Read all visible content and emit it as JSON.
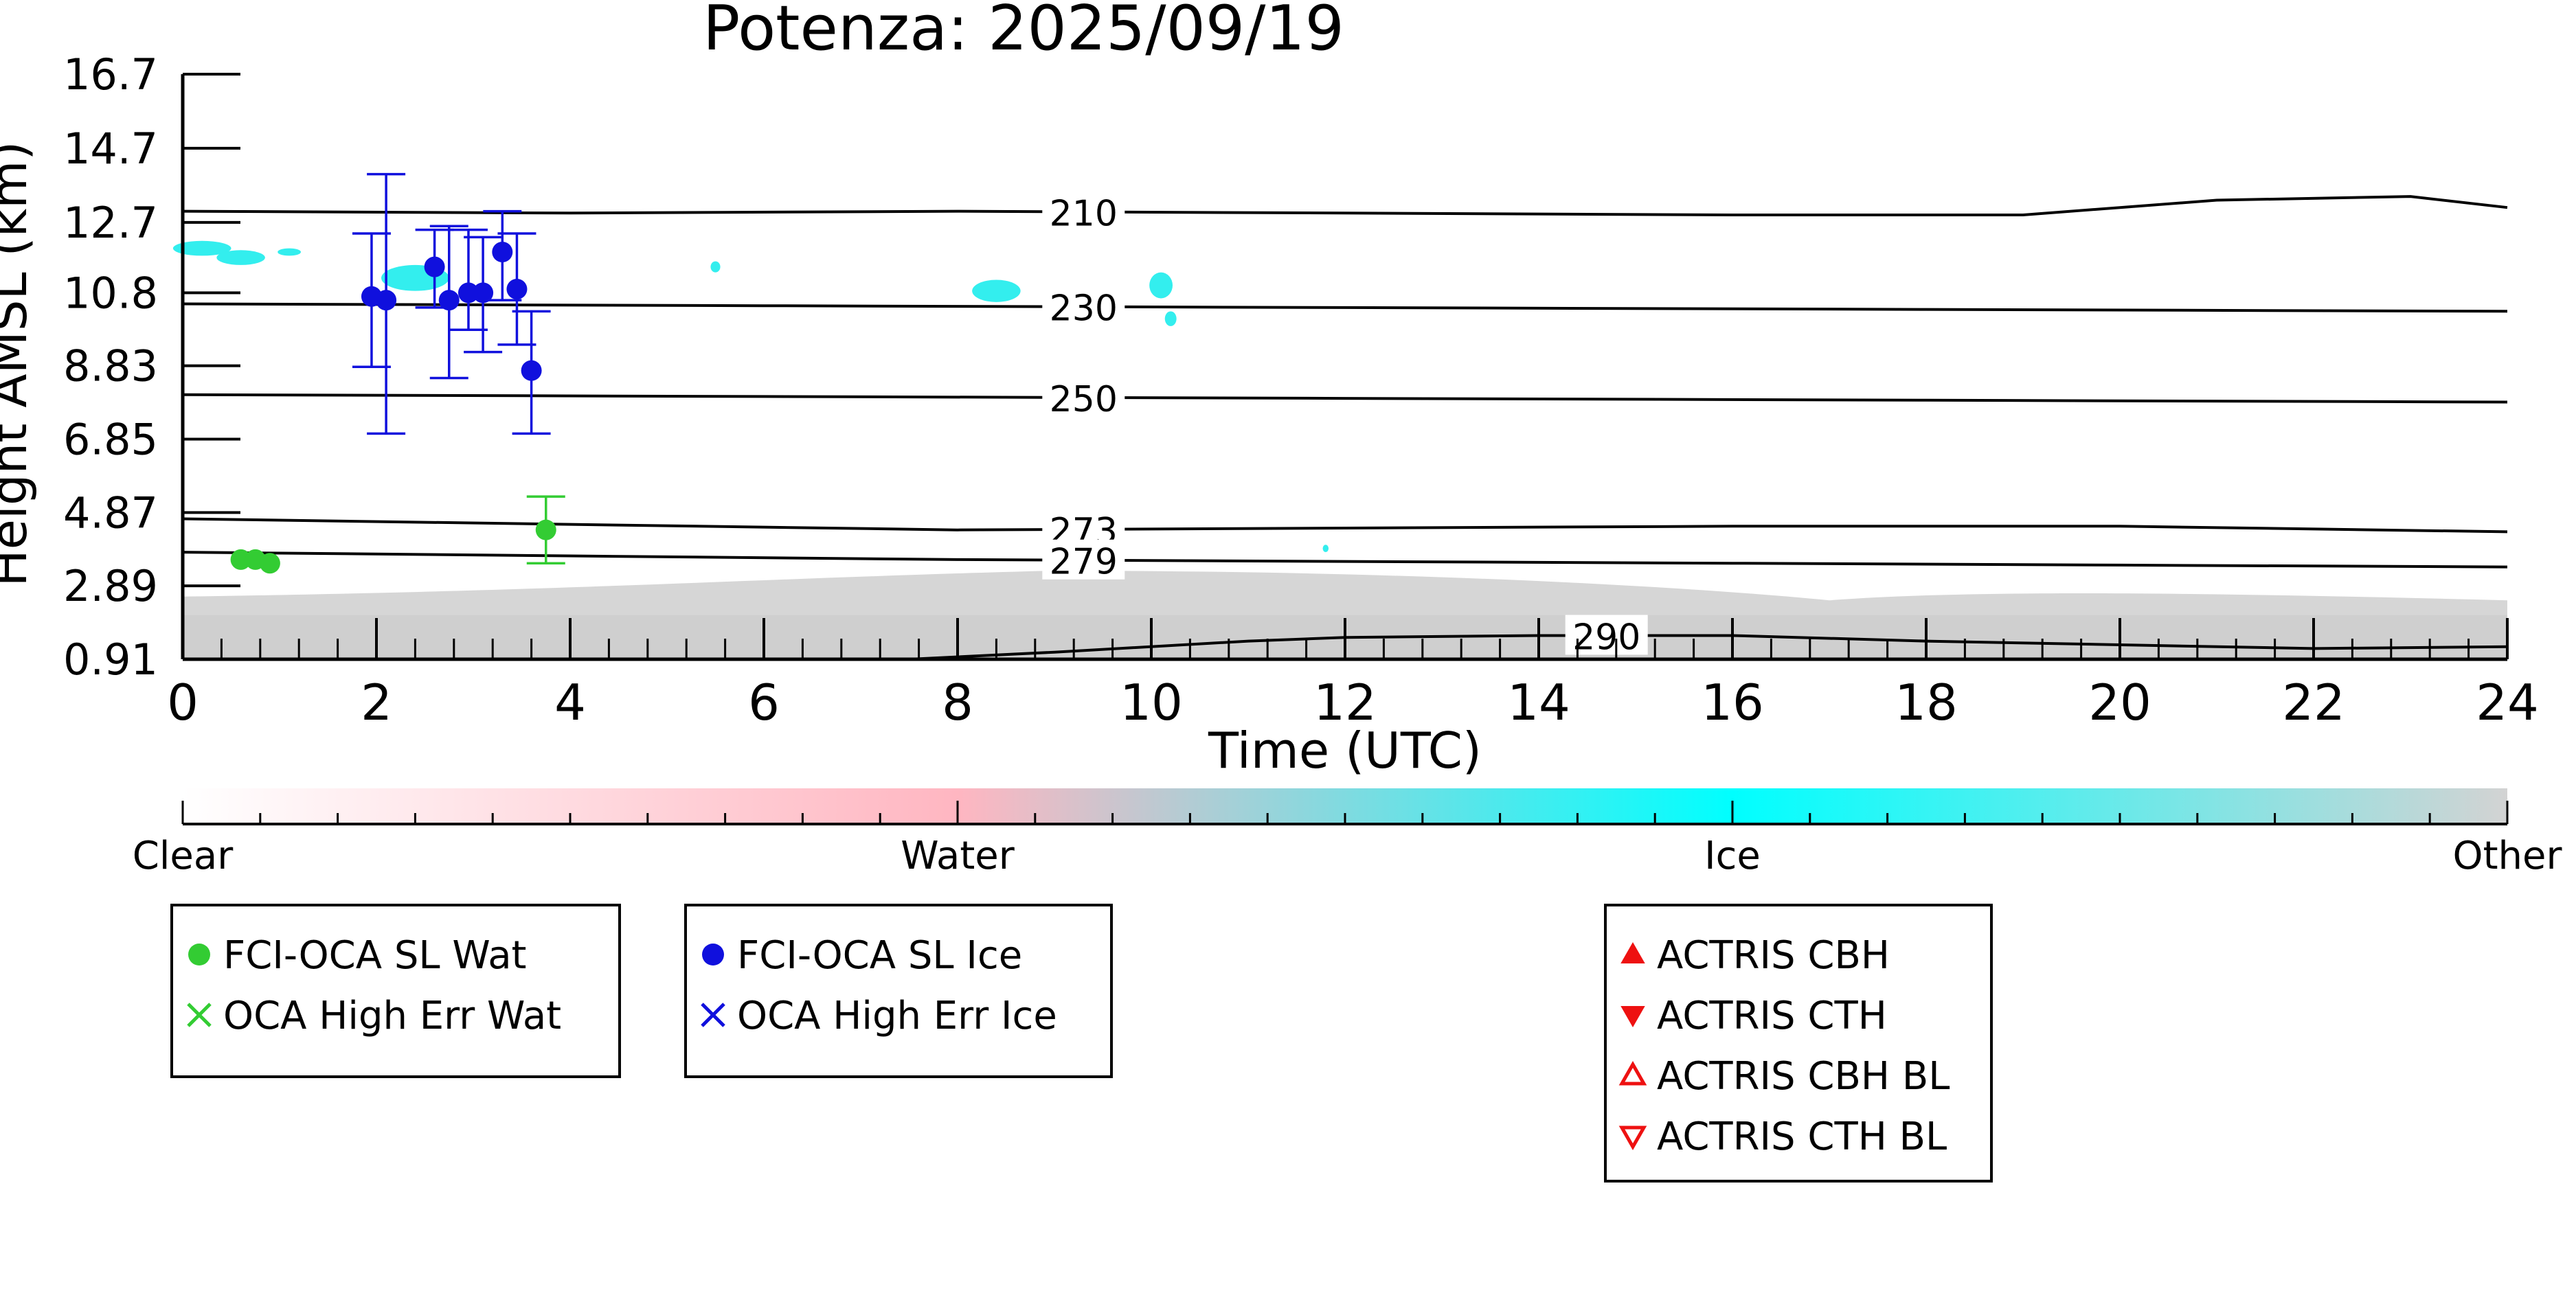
{
  "title": "Potenza: 2025/09/19",
  "chart_data": {
    "type": "scatter",
    "title": "Potenza: 2025/09/19",
    "xlabel": "Time (UTC)",
    "ylabel": "Height AMSL (km)",
    "xlim": [
      0,
      24
    ],
    "ylim": [
      0.91,
      16.7
    ],
    "x_ticks": [
      0,
      2,
      4,
      6,
      8,
      10,
      12,
      14,
      16,
      18,
      20,
      22,
      24
    ],
    "y_ticks": [
      0.91,
      2.89,
      4.87,
      6.85,
      8.83,
      10.8,
      12.7,
      14.7,
      16.7
    ],
    "y_tick_labels": [
      "0.91",
      "2.89",
      "4.87",
      "6.85",
      "8.83",
      "10.8",
      "12.7",
      "14.7",
      "16.7"
    ],
    "grid": false,
    "isotherms": [
      {
        "label": "210",
        "points": [
          [
            0,
            13.0
          ],
          [
            4,
            12.95
          ],
          [
            8,
            13.0
          ],
          [
            12,
            12.95
          ],
          [
            16,
            12.9
          ],
          [
            19,
            12.9
          ],
          [
            20,
            13.1
          ],
          [
            21,
            13.3
          ],
          [
            23,
            13.4
          ],
          [
            24,
            13.1
          ]
        ]
      },
      {
        "label": "230",
        "points": [
          [
            0,
            10.5
          ],
          [
            6,
            10.45
          ],
          [
            12,
            10.4
          ],
          [
            18,
            10.35
          ],
          [
            24,
            10.3
          ]
        ]
      },
      {
        "label": "250",
        "points": [
          [
            0,
            8.05
          ],
          [
            6,
            8.0
          ],
          [
            12,
            7.95
          ],
          [
            18,
            7.9
          ],
          [
            24,
            7.85
          ]
        ]
      },
      {
        "label": "273",
        "points": [
          [
            0,
            4.7
          ],
          [
            4,
            4.55
          ],
          [
            8,
            4.4
          ],
          [
            12,
            4.45
          ],
          [
            16,
            4.5
          ],
          [
            20,
            4.5
          ],
          [
            24,
            4.35
          ]
        ]
      },
      {
        "label": "279",
        "points": [
          [
            0,
            3.8
          ],
          [
            4,
            3.7
          ],
          [
            8,
            3.6
          ],
          [
            12,
            3.55
          ],
          [
            16,
            3.5
          ],
          [
            20,
            3.45
          ],
          [
            24,
            3.4
          ]
        ]
      },
      {
        "label": "290",
        "points": [
          [
            7.5,
            0.91
          ],
          [
            9,
            1.1
          ],
          [
            11,
            1.4
          ],
          [
            12,
            1.5
          ],
          [
            14,
            1.55
          ],
          [
            16,
            1.55
          ],
          [
            18,
            1.4
          ],
          [
            20,
            1.3
          ],
          [
            22,
            1.2
          ],
          [
            24,
            1.25
          ]
        ]
      }
    ],
    "series": [
      {
        "name": "FCI-OCA SL Wat",
        "color": "#33cc33",
        "marker": "circle",
        "points": [
          {
            "x": 0.6,
            "y": 3.6
          },
          {
            "x": 0.75,
            "y": 3.6
          },
          {
            "x": 0.9,
            "y": 3.5
          },
          {
            "x": 3.75,
            "y": 4.4,
            "err_low": 3.5,
            "err_high": 5.3
          }
        ]
      },
      {
        "name": "FCI-OCA SL Ice",
        "color": "#1010dd",
        "marker": "circle",
        "points": [
          {
            "x": 1.95,
            "y": 10.7,
            "err_low": 8.8,
            "err_high": 12.4
          },
          {
            "x": 2.1,
            "y": 10.6,
            "err_low": 7.0,
            "err_high": 14.0
          },
          {
            "x": 2.6,
            "y": 11.5,
            "err_low": 10.4,
            "err_high": 12.5
          },
          {
            "x": 2.75,
            "y": 10.6,
            "err_low": 8.5,
            "err_high": 12.6
          },
          {
            "x": 2.95,
            "y": 10.8,
            "err_low": 9.8,
            "err_high": 12.5
          },
          {
            "x": 3.1,
            "y": 10.8,
            "err_low": 9.2,
            "err_high": 12.3
          },
          {
            "x": 3.3,
            "y": 11.9,
            "err_low": 10.6,
            "err_high": 13.0
          },
          {
            "x": 3.45,
            "y": 10.9,
            "err_low": 9.4,
            "err_high": 12.4
          },
          {
            "x": 3.6,
            "y": 8.7,
            "err_low": 7.0,
            "err_high": 10.3
          }
        ]
      }
    ],
    "colorbar": {
      "labels": [
        "Clear",
        "Water",
        "Ice",
        "Other"
      ],
      "colors": [
        "#ffffff",
        "#ffb6c1",
        "#00ffff",
        "#d3d3d3"
      ]
    },
    "legend_groups": [
      {
        "entries": [
          {
            "label": "FCI-OCA SL Wat",
            "marker": "circle",
            "color": "#33cc33"
          },
          {
            "label": "OCA High Err Wat",
            "marker": "x",
            "color": "#33cc33"
          }
        ]
      },
      {
        "entries": [
          {
            "label": "FCI-OCA SL Ice",
            "marker": "circle",
            "color": "#1010dd"
          },
          {
            "label": "OCA High Err Ice",
            "marker": "x",
            "color": "#1010dd"
          }
        ]
      },
      {
        "entries": [
          {
            "label": "ACTRIS CBH",
            "marker": "triangle-up",
            "color": "#ee1111"
          },
          {
            "label": "ACTRIS CTH",
            "marker": "triangle-down",
            "color": "#ee1111"
          },
          {
            "label": "ACTRIS CBH BL",
            "marker": "triangle-up-open",
            "color": "#ee1111"
          },
          {
            "label": "ACTRIS CTH BL",
            "marker": "triangle-down-open",
            "color": "#ee1111"
          }
        ]
      }
    ]
  }
}
